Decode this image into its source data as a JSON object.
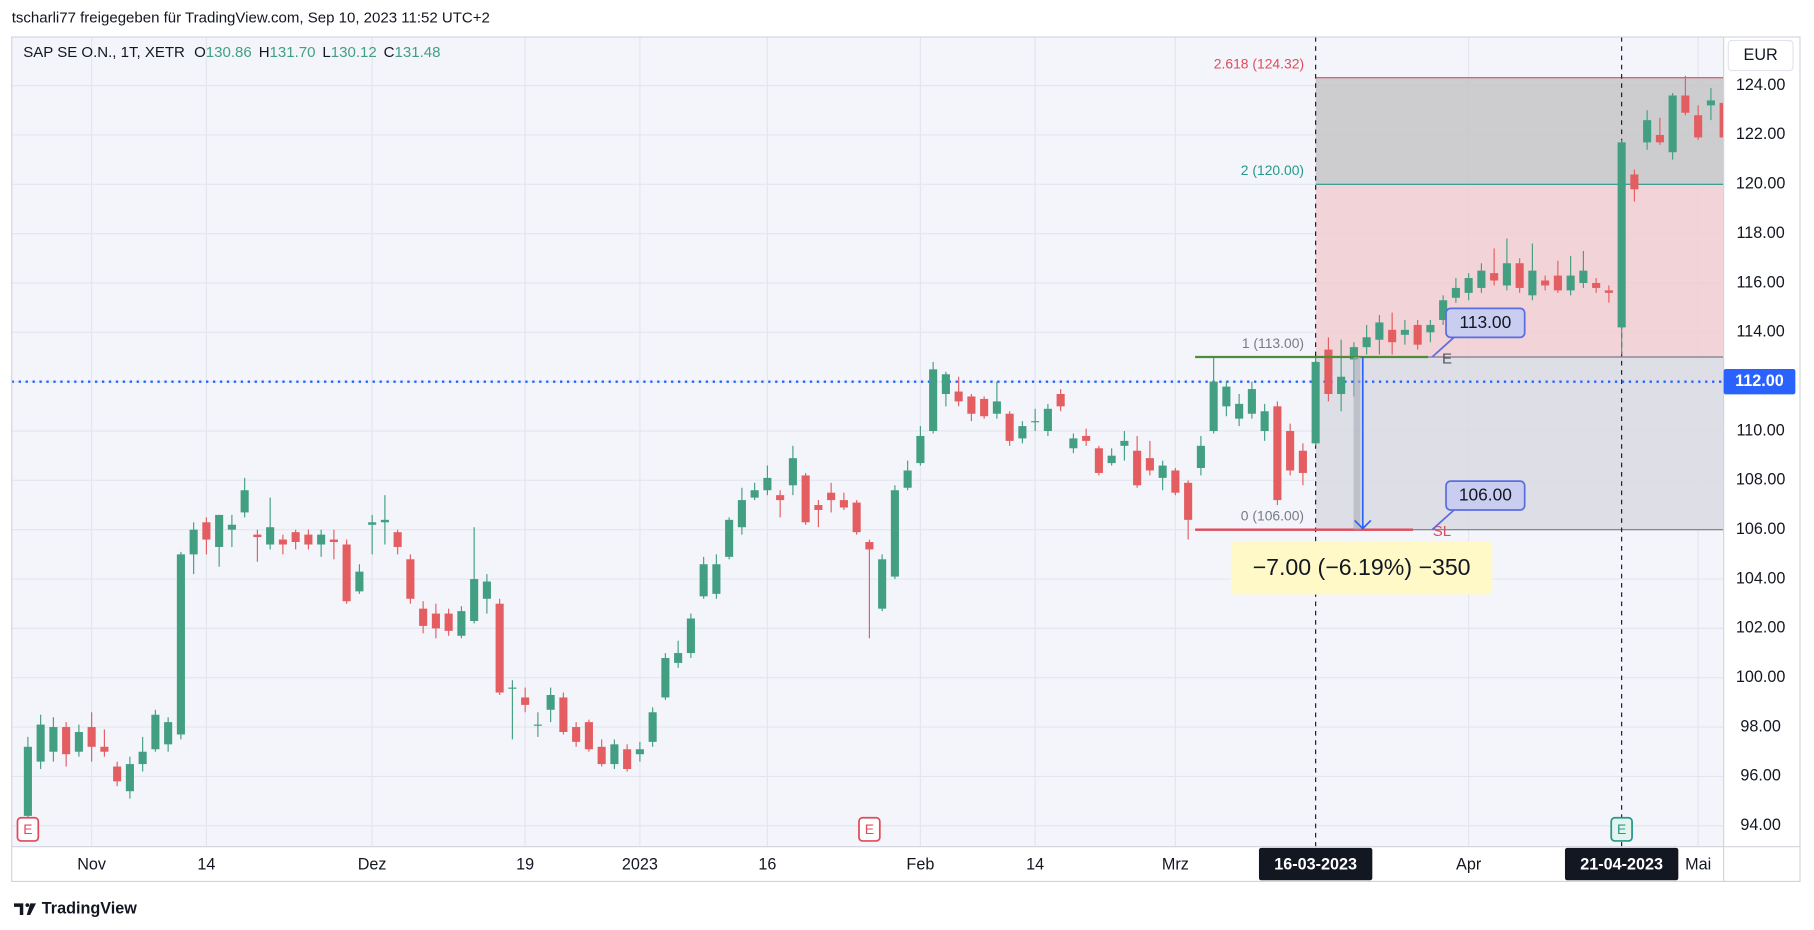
{
  "share_line": "tscharli77 freigegeben für TradingView.com, Sep 10, 2023 11:52 UTC+2",
  "symbol": "SAP SE O.N., 1T, XETR",
  "ohlc": [
    {
      "key": "O",
      "value": "130.86"
    },
    {
      "key": "H",
      "value": "131.70"
    },
    {
      "key": "L",
      "value": "130.12"
    },
    {
      "key": "C",
      "value": "131.48"
    }
  ],
  "currency": "EUR",
  "brand": "TradingView",
  "chart_data": {
    "type": "candlestick",
    "up_color": "#429f82",
    "down_color": "#e35d61",
    "grid": true,
    "ylim": [
      93.15,
      125.97
    ],
    "yticks": [
      {
        "value": 94,
        "label": "94.00"
      },
      {
        "value": 96,
        "label": "96.00"
      },
      {
        "value": 98,
        "label": "98.00"
      },
      {
        "value": 100,
        "label": "100.00"
      },
      {
        "value": 102,
        "label": "102.00"
      },
      {
        "value": 104,
        "label": "104.00"
      },
      {
        "value": 106,
        "label": "106.00"
      },
      {
        "value": 108,
        "label": "108.00"
      },
      {
        "value": 110,
        "label": "110.00"
      },
      {
        "value": 112,
        "label": "112.00"
      },
      {
        "value": 114,
        "label": "114.00"
      },
      {
        "value": 116,
        "label": "116.00"
      },
      {
        "value": 118,
        "label": "118.00"
      },
      {
        "value": 120,
        "label": "120.00"
      },
      {
        "value": 122,
        "label": "122.00"
      },
      {
        "value": 124,
        "label": "124.00"
      }
    ],
    "categories": [
      null,
      null,
      null,
      null,
      null,
      "Nov",
      null,
      null,
      null,
      null,
      null,
      null,
      null,
      null,
      "14",
      null,
      null,
      null,
      null,
      null,
      null,
      null,
      null,
      null,
      null,
      null,
      null,
      "Dez",
      null,
      null,
      null,
      null,
      null,
      null,
      null,
      null,
      null,
      null,
      null,
      "19",
      null,
      null,
      null,
      null,
      null,
      null,
      null,
      null,
      "2023",
      null,
      null,
      null,
      null,
      null,
      null,
      null,
      null,
      null,
      "16",
      null,
      null,
      null,
      null,
      null,
      null,
      null,
      null,
      null,
      null,
      null,
      "Feb",
      null,
      null,
      null,
      null,
      null,
      null,
      null,
      null,
      "14",
      null,
      null,
      null,
      null,
      null,
      null,
      null,
      null,
      null,
      null,
      "Mrz",
      null,
      null,
      null,
      null,
      null,
      null,
      null,
      null,
      null,
      null,
      "16-03-2023",
      null,
      null,
      null,
      null,
      null,
      null,
      null,
      null,
      null,
      null,
      null,
      "Apr",
      null,
      null,
      null,
      null,
      null,
      null,
      null,
      null,
      null,
      null,
      null,
      "21-04-2023",
      null,
      null,
      null,
      null,
      null,
      "Mai",
      null,
      null
    ],
    "highlighted_categories": [
      "16-03-2023",
      "21-04-2023"
    ],
    "open": [
      94.4,
      96.6,
      97,
      98,
      97,
      98,
      97.2,
      96.4,
      95.4,
      96.5,
      97.1,
      97.3,
      97.7,
      105,
      106.3,
      105.3,
      106,
      106.7,
      105.8,
      105.4,
      105.6,
      105.9,
      105.8,
      105.4,
      105.6,
      105.4,
      103.5,
      106.2,
      106.3,
      105.9,
      104.8,
      102.8,
      102.6,
      102.6,
      101.7,
      102.3,
      103.2,
      103,
      99.6,
      99.2,
      98.1,
      98.7,
      99.2,
      98,
      98.2,
      97.2,
      96.5,
      97.1,
      96.9,
      97.4,
      99.2,
      100.6,
      101,
      103.3,
      103.4,
      104.9,
      106.1,
      107.3,
      107.6,
      107.4,
      107.8,
      108.2,
      107,
      107.5,
      107.2,
      107.1,
      105.5,
      102.8,
      104.1,
      107.7,
      108.7,
      110,
      111.5,
      111.6,
      111.4,
      111.3,
      110.7,
      110.7,
      109.7,
      110.4,
      110,
      111.5,
      109.3,
      109.8,
      109.3,
      108.7,
      109.4,
      109.2,
      108.9,
      108.1,
      108.4,
      107.9,
      108.5,
      110,
      111,
      110.5,
      110.7,
      110,
      111,
      110,
      109.2,
      109.5,
      113.3,
      111.5,
      112.9,
      113.4,
      113.7,
      114.1,
      113.9,
      114.3,
      114,
      114.5,
      115.4,
      115.6,
      115.8,
      116.4,
      115.9,
      116.8,
      115.5,
      116.1,
      116.3,
      115.7,
      116,
      116,
      115.7,
      114.2,
      120.4,
      121.7,
      122,
      121.3,
      123.6,
      122.8,
      123.2,
      123.3
    ],
    "high": [
      97.6,
      98.5,
      98.4,
      98.2,
      98.1,
      98.6,
      97.9,
      96.6,
      96.8,
      97.6,
      98.7,
      98.4,
      105.1,
      106.3,
      106.5,
      106.6,
      106.6,
      108.1,
      106,
      107.3,
      105.8,
      106,
      106,
      106,
      106,
      105.6,
      104.6,
      106.6,
      107.4,
      106,
      105,
      103.1,
      103,
      102.8,
      102.9,
      106.1,
      104.2,
      103.2,
      99.9,
      99.6,
      98.6,
      99.6,
      99.4,
      98.2,
      98.3,
      97.5,
      97.5,
      97.3,
      97.4,
      98.8,
      101,
      101.5,
      102.6,
      104.9,
      105,
      106.5,
      107.7,
      107.9,
      108.6,
      107.6,
      109.4,
      108.3,
      107.2,
      107.9,
      107.5,
      107.2,
      105.6,
      105,
      107.8,
      108.8,
      110.2,
      112.8,
      112.4,
      112.2,
      111.5,
      111.4,
      112,
      110.8,
      110.4,
      110.9,
      111.1,
      111.7,
      109.9,
      110.1,
      109.4,
      109.3,
      110,
      109.8,
      109.6,
      108.8,
      108.5,
      108,
      109.8,
      113,
      112,
      111.5,
      112,
      111.1,
      111.2,
      110.3,
      109.5,
      113,
      113.8,
      113.7,
      113.6,
      114.3,
      114.7,
      114.8,
      114.5,
      114.5,
      114.5,
      115.5,
      116.2,
      116.4,
      116.8,
      117.4,
      117.8,
      117,
      117.6,
      116.3,
      116.9,
      117.1,
      117.3,
      116.2,
      115.9,
      121.8,
      120.6,
      123,
      122.7,
      123.7,
      124.4,
      123.2,
      123.9,
      123.5
    ],
    "low": [
      94.3,
      96.3,
      96.6,
      96.4,
      96.8,
      96.6,
      96.8,
      95.6,
      95.1,
      96.2,
      97,
      97,
      97.5,
      104.2,
      105,
      104.5,
      105.3,
      106.5,
      104.7,
      105.2,
      105,
      105.2,
      105.2,
      104.9,
      104.8,
      103,
      103.4,
      105,
      105.4,
      105,
      103,
      101.8,
      101.6,
      101.7,
      101.6,
      102.2,
      102.6,
      99.3,
      97.5,
      98.6,
      97.6,
      98.2,
      97.7,
      97.2,
      97,
      96.4,
      96.3,
      96.2,
      96.6,
      97.2,
      99.1,
      100.4,
      100.8,
      103.2,
      103.2,
      104.8,
      105.8,
      107.2,
      107.4,
      106.5,
      107.4,
      106.2,
      106.1,
      106.7,
      106.8,
      105.8,
      101.6,
      102.7,
      104,
      107.6,
      108.6,
      109.9,
      111,
      111,
      110.4,
      110.5,
      110.5,
      109.4,
      109.5,
      110,
      109.8,
      110.8,
      109.1,
      109.4,
      108.2,
      108.6,
      108.8,
      107.7,
      108.2,
      107.6,
      107.4,
      105.6,
      108.2,
      109.9,
      110.6,
      110.2,
      110.5,
      109.6,
      107,
      108.2,
      107.8,
      109.4,
      111.2,
      110.8,
      111.4,
      113.1,
      113.1,
      113.1,
      113.5,
      113.3,
      113.6,
      114.3,
      115.2,
      115.3,
      115.6,
      115.9,
      115.7,
      115.6,
      115.3,
      115.7,
      115.6,
      115.5,
      115.8,
      115.6,
      115.2,
      113.1,
      119.3,
      121.4,
      121.6,
      121,
      122.8,
      121.8,
      122.6,
      121.8
    ],
    "close": [
      97.2,
      98.1,
      98,
      96.9,
      97.8,
      97.2,
      97,
      95.8,
      96.5,
      97,
      98.5,
      98.2,
      105,
      106,
      105.6,
      106.6,
      106.2,
      107.6,
      105.7,
      106.1,
      105.4,
      105.5,
      105.4,
      105.8,
      105.5,
      103.1,
      104.3,
      106.3,
      106.4,
      105.3,
      103.2,
      102.1,
      102,
      101.9,
      102.7,
      104,
      103.9,
      99.4,
      99.6,
      98.9,
      98.1,
      99.3,
      97.8,
      97.4,
      97.1,
      96.5,
      97.3,
      96.3,
      97.1,
      98.6,
      100.8,
      101,
      102.4,
      104.6,
      104.6,
      106.4,
      107.2,
      107.6,
      108.1,
      107.2,
      108.9,
      106.3,
      106.8,
      107.2,
      106.9,
      105.9,
      105.2,
      104.8,
      107.6,
      108.4,
      109.8,
      112.5,
      112.3,
      111.2,
      110.7,
      110.6,
      111.2,
      109.6,
      110.2,
      110.4,
      110.9,
      111,
      109.7,
      109.6,
      108.3,
      109,
      109.6,
      107.8,
      108.4,
      108.6,
      107.5,
      106.4,
      109.4,
      112,
      111.8,
      111.1,
      111.7,
      110.8,
      107.2,
      108.4,
      108.3,
      112.8,
      111.5,
      112.2,
      113.4,
      113.8,
      114.4,
      113.6,
      114.1,
      113.5,
      114.3,
      115.3,
      115.8,
      116.2,
      116.5,
      116.1,
      116.8,
      115.8,
      116.5,
      115.9,
      115.7,
      116.3,
      116.5,
      115.8,
      115.6,
      121.7,
      119.8,
      122.6,
      121.7,
      123.6,
      122.9,
      121.9,
      123.4,
      121.9
    ],
    "current_price": {
      "value": 112,
      "label": "112.00",
      "color": "#2962ff"
    },
    "fib": {
      "start": "16-03-2023",
      "levels": [
        {
          "value": 124.32,
          "label": "2.618 (124.32)",
          "color": "#e04a5a"
        },
        {
          "value": 120,
          "label": "2 (120.00)",
          "color": "#22998a"
        },
        {
          "value": 113,
          "label": "1 (113.00)",
          "color": "#787b86"
        },
        {
          "value": 106,
          "label": "0 (106.00)",
          "color": "#787b86"
        }
      ],
      "zone_colors": [
        "#c6c6c8",
        "#f1cdd1",
        "#d9dbe2"
      ]
    },
    "position": {
      "entry": {
        "value": 113,
        "label": "113.00"
      },
      "stop": {
        "value": 106,
        "label": "106.00"
      },
      "entry_tag": "E",
      "stop_tag": "SL",
      "measure": "−7.00 (−6.19%) −350",
      "entry_color": "#4f8b3a",
      "stop_color": "#e04a5a"
    },
    "earnings": {
      "label": "E",
      "at": [
        0,
        66,
        125
      ],
      "colors": [
        "#e04a5a",
        "#e04a5a",
        "#22998a"
      ]
    }
  }
}
